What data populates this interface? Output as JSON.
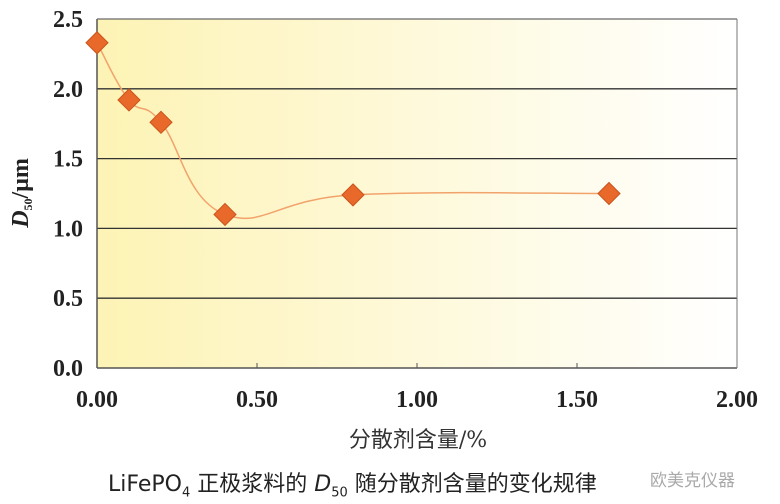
{
  "chart_data": {
    "type": "line",
    "title": "",
    "xlabel": "分散剂含量/%",
    "ylabel": "D50/μm",
    "xlim": [
      0,
      2.0
    ],
    "ylim": [
      0,
      2.5
    ],
    "xticks": [
      "0.00",
      "0.50",
      "1.00",
      "1.50",
      "2.00"
    ],
    "yticks": [
      "0.0",
      "0.5",
      "1.0",
      "1.5",
      "2.0",
      "2.5"
    ],
    "grid": "horizontal",
    "series": [
      {
        "x": [
          0,
          0.1,
          0.2,
          0.4,
          0.8,
          1.6
        ],
        "y": [
          2.33,
          1.92,
          1.76,
          1.1,
          1.24,
          1.25
        ],
        "marker": "diamond",
        "smooth": true
      }
    ],
    "colors": {
      "marker": "#e8692a",
      "line": "#f2a36b",
      "background_left": "#fdf3b5",
      "background_right": "#ffffff",
      "grid": "#333333"
    }
  },
  "caption": {
    "prefix": "LiFePO",
    "sub1": "4",
    "middle": " 正极浆料的 ",
    "d": "D",
    "sub2": "50",
    "suffix": " 随分散剂含量的变化规律"
  },
  "watermark": "欧美克仪器"
}
